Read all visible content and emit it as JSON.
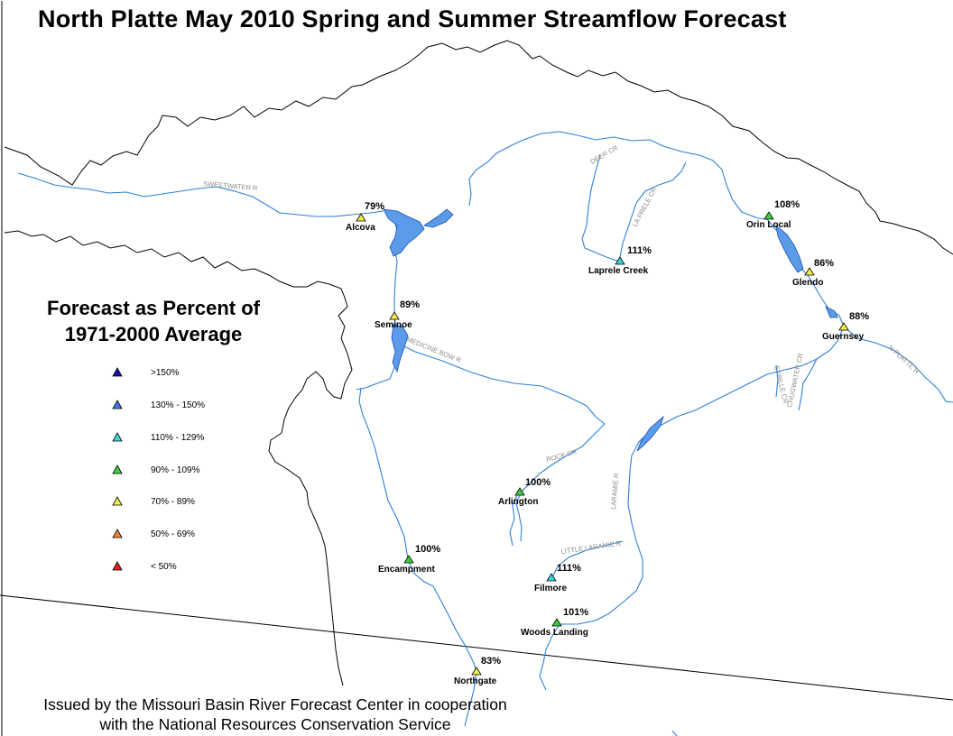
{
  "title": "North Platte May 2010 Spring and Summer Streamflow Forecast",
  "legend": {
    "title_line1": "Forecast as Percent of",
    "title_line2": "1971-2000 Average",
    "items": [
      {
        "label": ">150%",
        "color": "#1414b4"
      },
      {
        "label": "130% - 150%",
        "color": "#3a78e6"
      },
      {
        "label": "110% - 129%",
        "color": "#3ad8d8"
      },
      {
        "label": "90% - 109%",
        "color": "#3ad23a"
      },
      {
        "label": "70% - 89%",
        "color": "#f0f046"
      },
      {
        "label": "50% - 69%",
        "color": "#f08232"
      },
      {
        "label": "< 50%",
        "color": "#e61e1e"
      }
    ]
  },
  "stations": [
    {
      "name": "Alcova",
      "percent": "79%",
      "color": "#f0f046"
    },
    {
      "name": "Orin Local",
      "percent": "108%",
      "color": "#3ad23a"
    },
    {
      "name": "Laprele Creek",
      "percent": "111%",
      "color": "#3ad8d8"
    },
    {
      "name": "Glendo",
      "percent": "86%",
      "color": "#f0f046"
    },
    {
      "name": "Seminoe",
      "percent": "89%",
      "color": "#f0f046"
    },
    {
      "name": "Guernsey",
      "percent": "88%",
      "color": "#f0f046"
    },
    {
      "name": "Arlington",
      "percent": "100%",
      "color": "#3ad23a"
    },
    {
      "name": "Encampment",
      "percent": "100%",
      "color": "#3ad23a"
    },
    {
      "name": "Filmore",
      "percent": "111%",
      "color": "#3ad8d8"
    },
    {
      "name": "Woods Landing",
      "percent": "101%",
      "color": "#3ad23a"
    },
    {
      "name": "Northgate",
      "percent": "83%",
      "color": "#f0f046"
    }
  ],
  "rivers": [
    {
      "name": "SWEETWATER R"
    },
    {
      "name": "DEER CR"
    },
    {
      "name": "LA PRELE CR"
    },
    {
      "name": "MEDICINE BOW R"
    },
    {
      "name": "SYBILLE CR"
    },
    {
      "name": "CHUGWATER CR"
    },
    {
      "name": "N PLATTE R"
    },
    {
      "name": "ROCK CR"
    },
    {
      "name": "LARAMIE R"
    },
    {
      "name": "LITTLE LARAMIE R"
    }
  ],
  "colors": {
    "river": "#2f7fd6",
    "reservoir": "#5b9bea",
    "boundary": "#000000"
  },
  "footer": {
    "line1": "Issued by the Missouri Basin River Forecast Center in cooperation",
    "line2": "with the National Resources Conservation Service"
  }
}
